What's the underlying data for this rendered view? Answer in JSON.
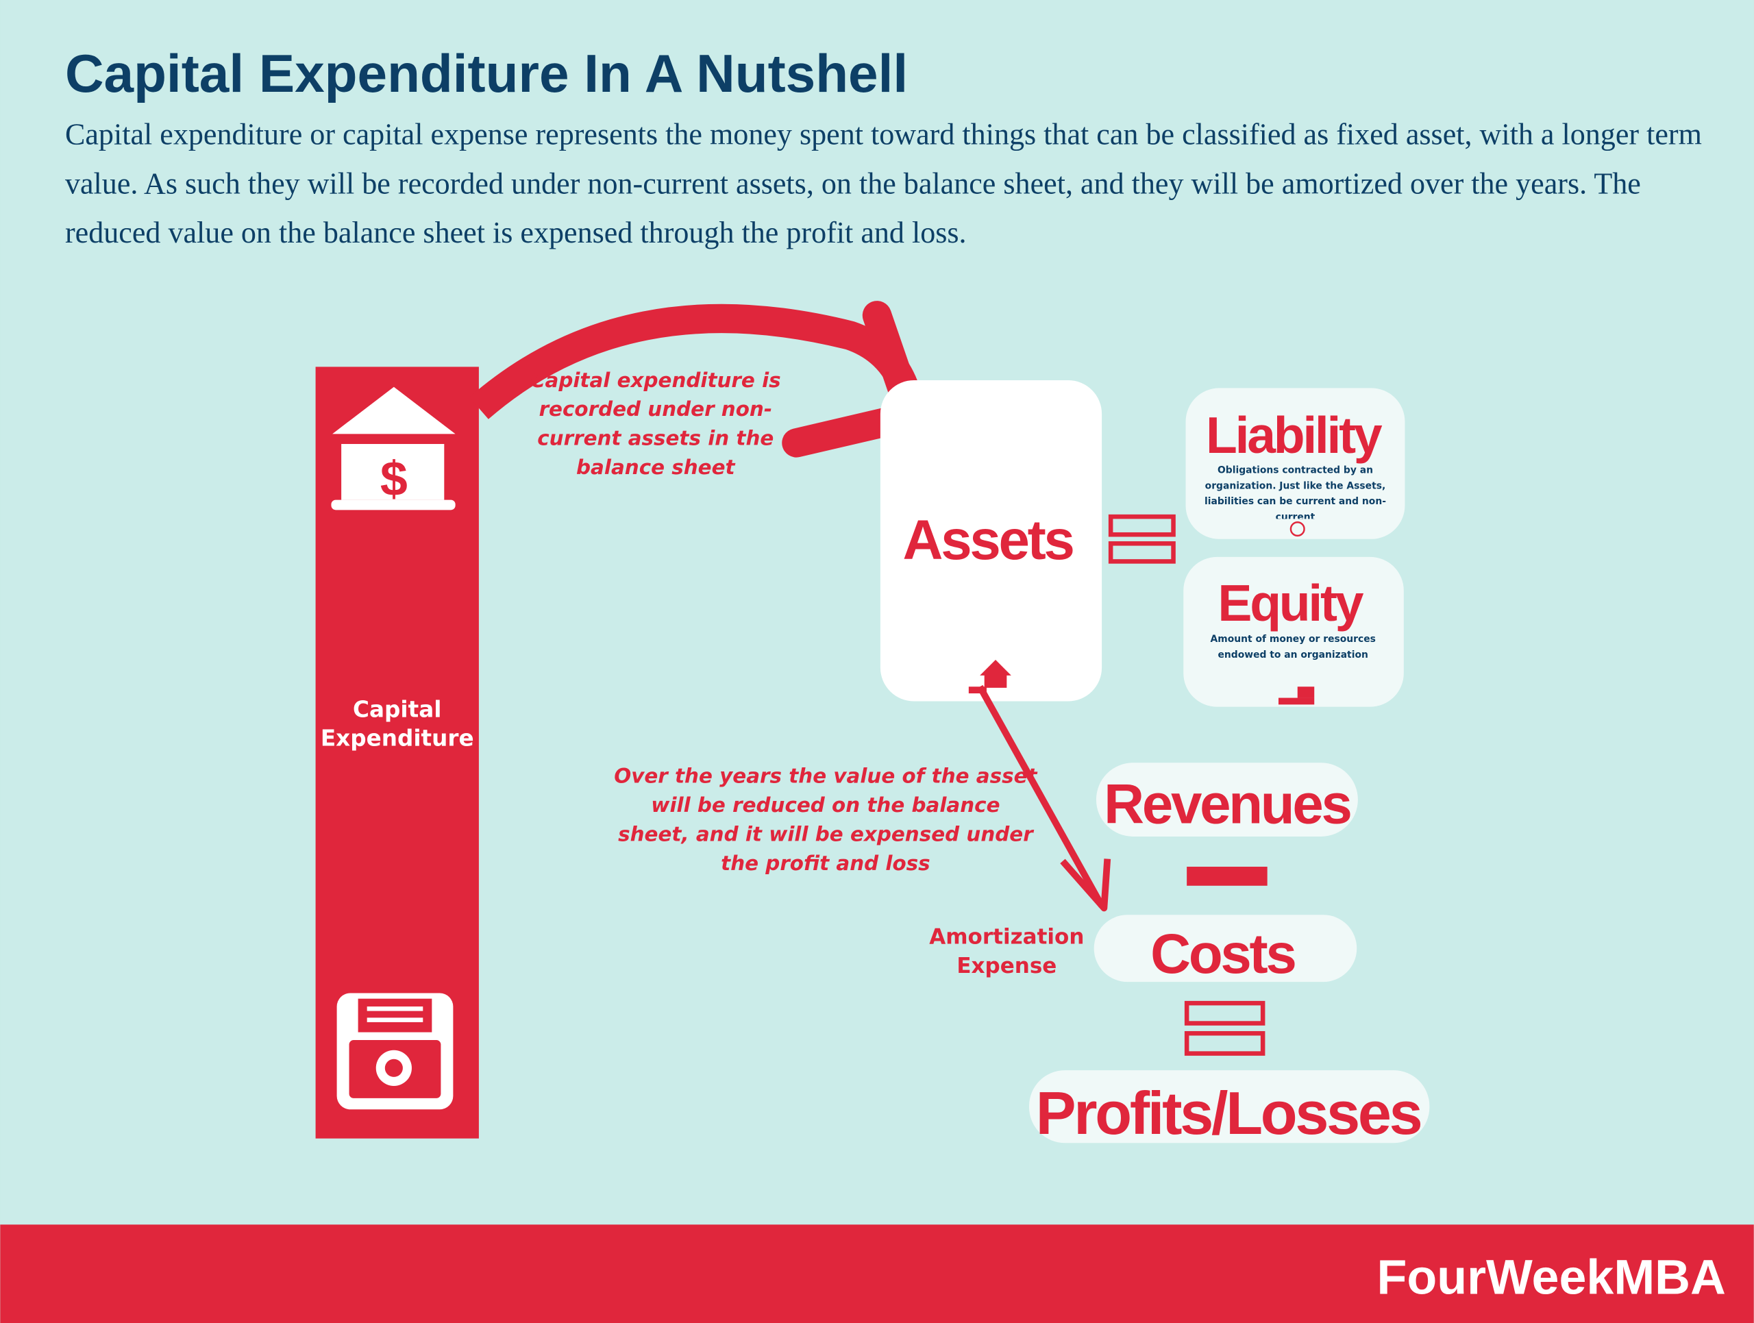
{
  "header": {
    "title": "Capital Expenditure In A Nutshell",
    "description": "Capital expenditure or capital expense represents the money spent toward things that can be classified as fixed asset, with a longer term value. As such they will be recorded under non-current assets, on the balance sheet, and they will be amortized over the years. The reduced value on the balance sheet is expensed through the profit and loss."
  },
  "nodes": [
    {
      "label": "Capital Expenditure"
    },
    {
      "label": "Assets"
    },
    {
      "label": "Liability",
      "description": "Obligations contracted by an organization. Just like the Assets, liabilities can be current and non-current"
    },
    {
      "label": "Equity",
      "description": "Amount of money or resources endowed to an organization"
    },
    {
      "label": "Revenues"
    },
    {
      "label": "Costs"
    },
    {
      "label": "Profits/Losses"
    }
  ],
  "annotations": [
    "Capital expenditure is recorded under non-current assets in the balance sheet",
    "Over the years the value of the asset will be reduced on the balance sheet, and it will be expensed under the profit and loss",
    "Amortization Expense"
  ],
  "footer": {
    "brand": "FourWeekMBA"
  }
}
